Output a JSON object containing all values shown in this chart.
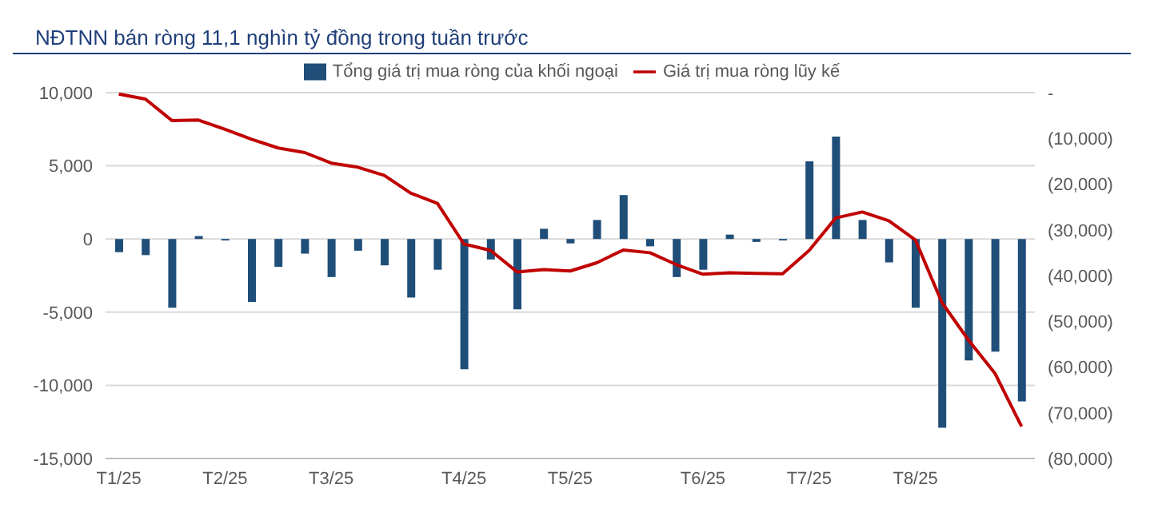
{
  "chart_data": {
    "type": "bar",
    "title": "NĐTNN bán ròng 11,1 nghìn tỷ đồng trong tuần trước",
    "categories": [
      "T1/25",
      null,
      null,
      null,
      "T2/25",
      null,
      null,
      null,
      "T3/25",
      null,
      null,
      null,
      null,
      "T4/25",
      null,
      null,
      null,
      "T5/25",
      null,
      null,
      null,
      null,
      "T6/25",
      null,
      null,
      null,
      "T7/25",
      null,
      null,
      null,
      "T8/25",
      null,
      null,
      null,
      null
    ],
    "series": [
      {
        "name": "Tổng giá trị mua ròng của khối ngoại",
        "color": "#1f4e79",
        "values": [
          -900,
          -1100,
          -4700,
          200,
          -100,
          -4300,
          -1900,
          -1000,
          -2600,
          -800,
          -1800,
          -4000,
          -2100,
          -8900,
          -1400,
          -4800,
          700,
          -300,
          1300,
          3000,
          -500,
          -2600,
          -2100,
          300,
          -200,
          -100,
          5300,
          7000,
          1300,
          -1600,
          -4700,
          -12900,
          -8300,
          -7700,
          -11100
        ]
      },
      {
        "name": "Giá trị mua ròng lũy kế",
        "type": "line",
        "axis": "y2",
        "color": "#c00000",
        "values": [
          -300,
          -1400,
          -6100,
          -6000,
          -8000,
          -10200,
          -12100,
          -13100,
          -15400,
          -16300,
          -18100,
          -22000,
          -24200,
          -33100,
          -34500,
          -39200,
          -38700,
          -39000,
          -37200,
          -34400,
          -35000,
          -37600,
          -39700,
          -39400,
          -39500,
          -39600,
          -34500,
          -27400,
          -26100,
          -28000,
          -32200,
          -45900,
          -54100,
          -61400,
          -73000
        ]
      }
    ],
    "ylim": [
      -15000,
      10000
    ],
    "yticks": [
      {
        "value": -15000,
        "label": "-15,000"
      },
      {
        "value": -10000,
        "label": "-10,000"
      },
      {
        "value": -5000,
        "label": "-5,000"
      },
      0,
      {
        "value": 5000,
        "label": "5,000"
      },
      {
        "value": 10000,
        "label": "10,000"
      }
    ],
    "y2lim": [
      -80000,
      0
    ],
    "y2ticks": [
      {
        "value": -80000,
        "label": "(80,000)"
      },
      {
        "value": -70000,
        "label": "(70,000)"
      },
      {
        "value": -60000,
        "label": "(60,000)"
      },
      {
        "value": -50000,
        "label": "(50,000)"
      },
      {
        "value": -40000,
        "label": "(40,000)"
      },
      {
        "value": -30000,
        "label": "(30,000)"
      },
      {
        "value": -20000,
        "label": "(20,000)"
      },
      {
        "value": -10000,
        "label": "(10,000)"
      },
      {
        "value": 0,
        "label": "-"
      }
    ],
    "grid": "y",
    "legend": "top",
    "marker": "none"
  }
}
